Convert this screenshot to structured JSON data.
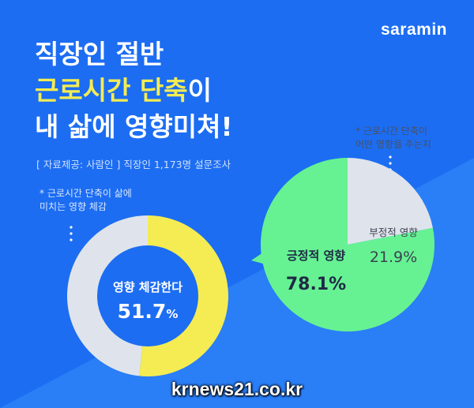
{
  "brand": "saramin",
  "title": {
    "line1": "직장인 절반",
    "line2_highlight": "근로시간 단축",
    "line2_rest": "이",
    "line3": "내 삶에 영향미쳐!"
  },
  "source": "[ 자료제공: 사람인 ] 직장인 1,173명 설문조사",
  "watermark": "krnews21.co.kr",
  "colors": {
    "background": "#1c6df2",
    "highlight": "#f4ec52",
    "donut_yes": "#f4ec52",
    "donut_rest": "#dfe4ec",
    "pie_positive": "#66f293",
    "pie_negative": "#dfe4ec"
  },
  "chart_data": [
    {
      "type": "pie",
      "variant": "donut",
      "note_line1": "* 근로시간 단축이 삶에",
      "note_line2": "미치는 영향 체감",
      "center_label": "영향 체감한다",
      "center_value": "51.7",
      "center_unit": "%",
      "slices": [
        {
          "label": "영향 체감한다",
          "value": 51.7
        },
        {
          "label": "",
          "value": 48.3
        }
      ]
    },
    {
      "type": "pie",
      "note_line1": "* 근로시간 단축이",
      "note_line2": "어떤 영향을 주는지",
      "slices": [
        {
          "label": "긍정적 영향",
          "value": 78.1,
          "display": "78.1%"
        },
        {
          "label": "부정적 영향",
          "value": 21.9,
          "display": "21.9%"
        }
      ]
    }
  ]
}
